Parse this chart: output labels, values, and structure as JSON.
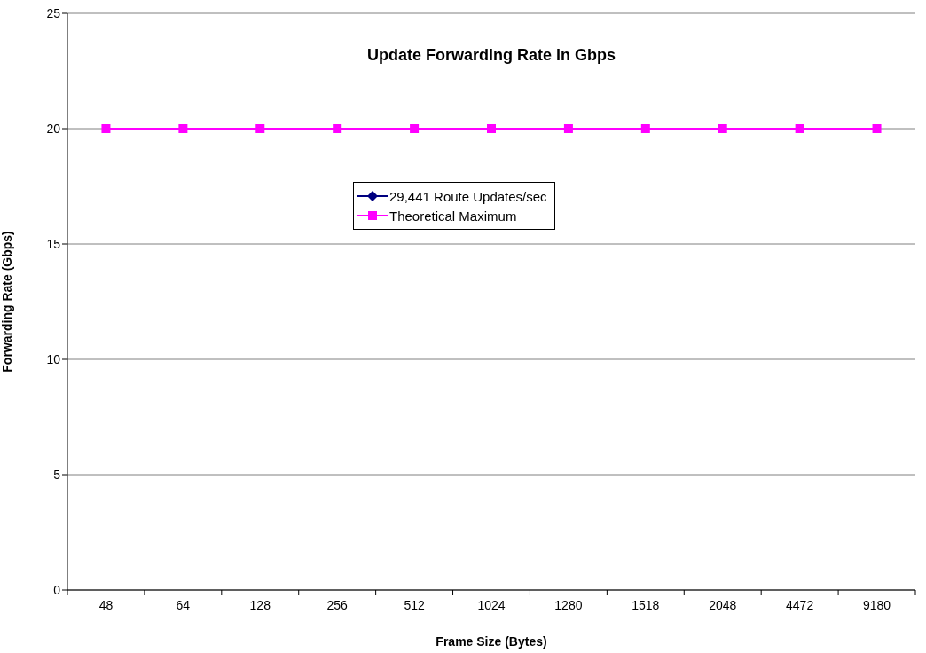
{
  "chart_data": {
    "type": "line",
    "title": "Update Forwarding Rate in Gbps",
    "xlabel": "Frame Size (Bytes)",
    "ylabel": "Forwarding Rate (Gbps)",
    "categories": [
      "48",
      "64",
      "128",
      "256",
      "512",
      "1024",
      "1280",
      "1518",
      "2048",
      "4472",
      "9180"
    ],
    "series": [
      {
        "name": "29,441 Route Updates/sec",
        "color": "#000080",
        "marker": "diamond",
        "values": [
          null,
          null,
          null,
          null,
          null,
          null,
          null,
          null,
          null,
          null,
          null
        ]
      },
      {
        "name": "Theoretical Maximum",
        "color": "#ff00ff",
        "marker": "square",
        "values": [
          20,
          20,
          20,
          20,
          20,
          20,
          20,
          20,
          20,
          20,
          20
        ]
      }
    ],
    "ylim": [
      0,
      25
    ],
    "yticks": [
      0,
      5,
      10,
      15,
      20,
      25
    ],
    "grid": "y",
    "legend": "top"
  }
}
